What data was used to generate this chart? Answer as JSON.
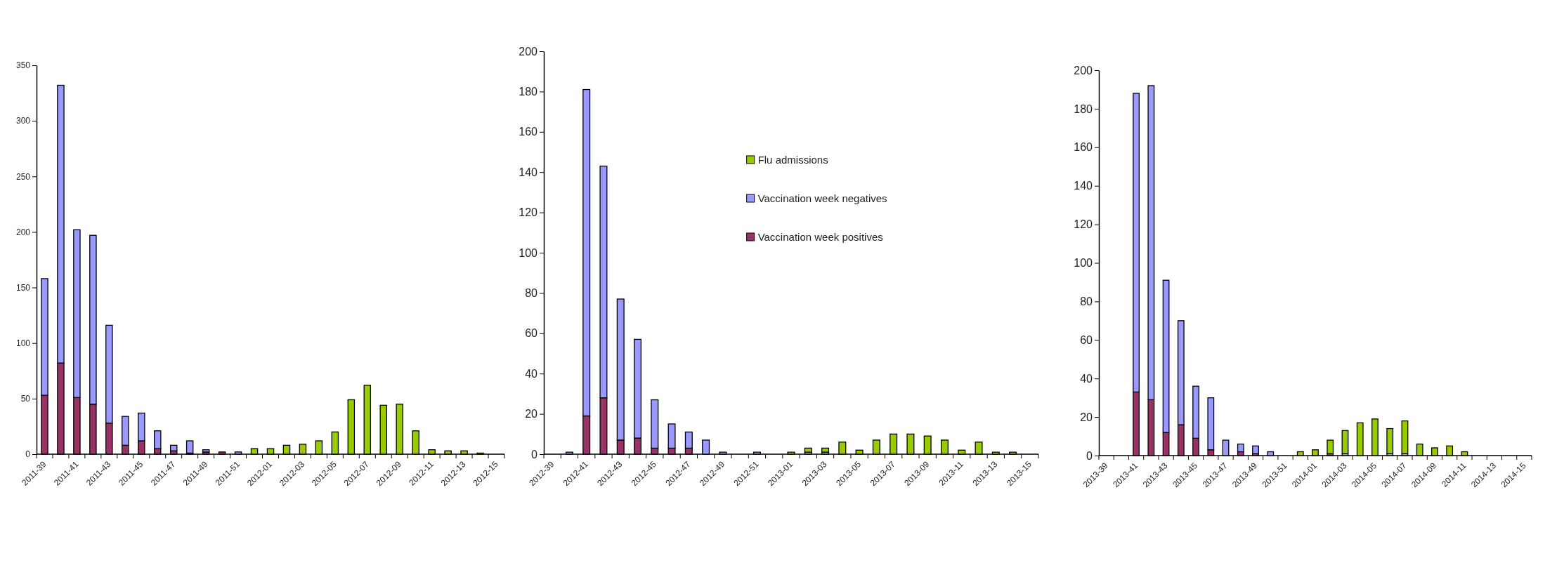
{
  "chart_data": [
    {
      "type": "bar",
      "stacked": true,
      "legend": false,
      "categories": [
        "2011-39",
        null,
        "2011-41",
        null,
        "2011-43",
        null,
        "2011-45",
        null,
        "2011-47",
        null,
        "2011-49",
        null,
        "2011-51",
        null,
        "2012-01",
        null,
        "2012-03",
        null,
        "2012-05",
        null,
        "2012-07",
        null,
        "2012-09",
        null,
        "2012-11",
        null,
        "2012-13",
        null,
        "2012-15"
      ],
      "ylim": [
        0,
        350
      ],
      "yticks": [
        0,
        50,
        100,
        150,
        200,
        250,
        300,
        350
      ],
      "series": [
        {
          "color": "#993366",
          "values": [
            53,
            82,
            51,
            45,
            28,
            8,
            12,
            5,
            3,
            1,
            2,
            2,
            null,
            null,
            null,
            null,
            null,
            null,
            null,
            null,
            null,
            null,
            null,
            null,
            null,
            null,
            null,
            null,
            null
          ]
        },
        {
          "color": "#9999ff",
          "values": [
            105,
            250,
            151,
            152,
            88,
            26,
            25,
            16,
            5,
            11,
            2,
            null,
            2,
            null,
            null,
            null,
            null,
            null,
            null,
            null,
            null,
            null,
            null,
            null,
            null,
            null,
            null,
            null,
            null
          ]
        },
        {
          "color": "#99cc00",
          "values": [
            null,
            null,
            null,
            null,
            null,
            null,
            null,
            null,
            null,
            null,
            null,
            null,
            null,
            5,
            5,
            8,
            9,
            12,
            20,
            49,
            62,
            44,
            45,
            21,
            4,
            3,
            3,
            1,
            null
          ]
        }
      ]
    },
    {
      "type": "bar",
      "stacked": true,
      "legend": "top right",
      "categories": [
        "2012-39",
        null,
        "2012-41",
        null,
        "2012-43",
        null,
        "2012-45",
        null,
        "2012-47",
        null,
        "2012-49",
        null,
        "2012-51",
        null,
        "2013-01",
        null,
        "2013-03",
        null,
        "2013-05",
        null,
        "2013-07",
        null,
        "2013-09",
        null,
        "2013-11",
        null,
        "2013-13",
        null,
        "2013-15"
      ],
      "ylim": [
        0,
        200
      ],
      "yticks": [
        0,
        20,
        40,
        60,
        80,
        100,
        120,
        140,
        160,
        180,
        200
      ],
      "series": [
        {
          "name": "Vaccination week positives",
          "color": "#993366",
          "values": [
            null,
            null,
            19,
            28,
            7,
            8,
            3,
            3,
            3,
            null,
            null,
            null,
            null,
            null,
            null,
            null,
            null,
            null,
            null,
            null,
            null,
            null,
            null,
            null,
            null,
            null,
            null,
            null,
            null
          ]
        },
        {
          "name": "Vaccination week negatives",
          "color": "#9999ff",
          "values": [
            null,
            1,
            162,
            115,
            70,
            49,
            24,
            12,
            8,
            7,
            1,
            null,
            1,
            null,
            null,
            1,
            1,
            null,
            null,
            null,
            null,
            null,
            null,
            null,
            null,
            null,
            null,
            null,
            null
          ]
        },
        {
          "name": "Flu admissions",
          "color": "#99cc00",
          "values": [
            null,
            null,
            null,
            null,
            null,
            null,
            null,
            null,
            null,
            null,
            null,
            null,
            null,
            null,
            1,
            2,
            2,
            6,
            2,
            7,
            10,
            10,
            9,
            7,
            2,
            6,
            1,
            1,
            null
          ]
        }
      ]
    },
    {
      "type": "bar",
      "stacked": true,
      "legend": false,
      "categories": [
        "2013-39",
        null,
        "2013-41",
        null,
        "2013-43",
        null,
        "2013-45",
        null,
        "2013-47",
        null,
        "2013-49",
        null,
        "2013-51",
        null,
        "2014-01",
        null,
        "2014-03",
        null,
        "2014-05",
        null,
        "2014-07",
        null,
        "2014-09",
        null,
        "2014-11",
        null,
        "2014-13",
        null,
        "2014-15"
      ],
      "ylim": [
        0,
        200
      ],
      "yticks": [
        0,
        20,
        40,
        60,
        80,
        100,
        120,
        140,
        160,
        180,
        200
      ],
      "series": [
        {
          "color": "#993366",
          "values": [
            null,
            null,
            33,
            29,
            12,
            16,
            9,
            3,
            null,
            2,
            1,
            null,
            null,
            null,
            null,
            1,
            null,
            null,
            null,
            null,
            null,
            null,
            null,
            null,
            null,
            null,
            null,
            null,
            null
          ]
        },
        {
          "color": "#9999ff",
          "values": [
            null,
            null,
            155,
            163,
            79,
            54,
            27,
            27,
            8,
            4,
            4,
            2,
            null,
            null,
            null,
            null,
            1,
            null,
            null,
            1,
            1,
            null,
            null,
            null,
            null,
            null,
            null,
            null,
            null
          ]
        },
        {
          "color": "#99cc00",
          "values": [
            null,
            null,
            null,
            null,
            null,
            null,
            null,
            null,
            null,
            null,
            null,
            null,
            null,
            2,
            3,
            7,
            12,
            17,
            19,
            13,
            17,
            6,
            4,
            5,
            2,
            null,
            null,
            null,
            null
          ]
        }
      ]
    }
  ]
}
